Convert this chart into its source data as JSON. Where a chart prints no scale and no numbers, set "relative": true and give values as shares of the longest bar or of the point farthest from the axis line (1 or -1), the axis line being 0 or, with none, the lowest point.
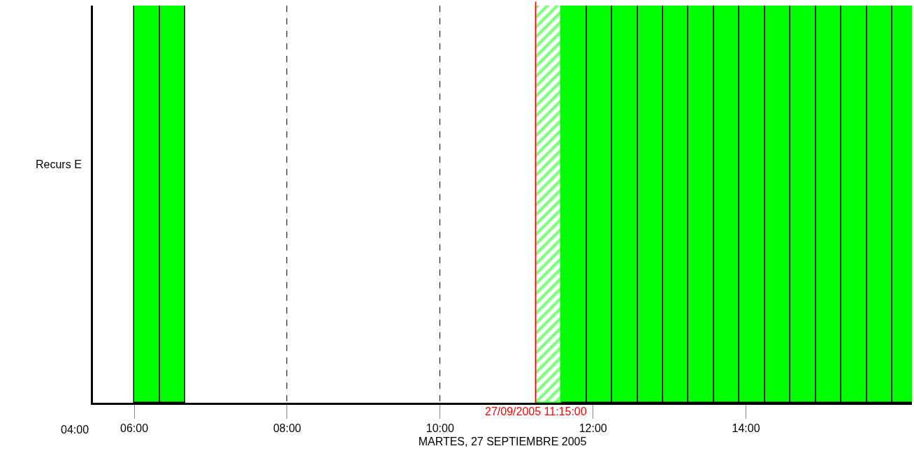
{
  "chart_data": {
    "type": "bar",
    "relative": true,
    "ylabel": "Recurs E",
    "xlabel": "MARTES, 27 SEPTIEMBRE 2005",
    "xlim": [
      5.46,
      16.17
    ],
    "xticks": [
      {
        "value": 6,
        "label": "06:00"
      },
      {
        "value": 8,
        "label": "08:00"
      },
      {
        "value": 10,
        "label": "10:00"
      },
      {
        "value": 12,
        "label": "12:00"
      },
      {
        "value": 14,
        "label": "14:00"
      }
    ],
    "grid": "x",
    "line_style": "dashed",
    "series": [
      {
        "color": "#00ff00",
        "x": [
          6.1667,
          6.5,
          11.75,
          12.0833,
          12.4167,
          12.75,
          13.0833,
          13.4167,
          13.75,
          14.0833,
          14.4167,
          14.75,
          15.0833,
          15.4167,
          15.75,
          16.0833
        ],
        "values": [
          1,
          1,
          1,
          1,
          1,
          1,
          1,
          1,
          1,
          1,
          1,
          1,
          1,
          1,
          1,
          1
        ]
      },
      {
        "color": "#00ff00",
        "x": [
          11.4167
        ],
        "values": [
          1
        ]
      }
    ],
    "ref_lines": [
      {
        "axis": "x",
        "value": 11.25,
        "label": "27/09/2005 11:15:00",
        "color": "#ff0000"
      }
    ],
    "annotations": [
      "04:00"
    ]
  }
}
